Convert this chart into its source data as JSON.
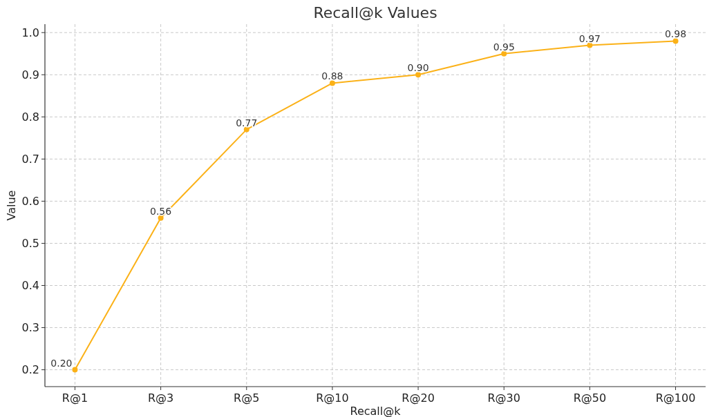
{
  "chart_data": {
    "type": "line",
    "title": "Recall@k Values",
    "xlabel": "Recall@k",
    "ylabel": "Value",
    "categories": [
      "R@1",
      "R@3",
      "R@5",
      "R@10",
      "R@20",
      "R@30",
      "R@50",
      "R@100"
    ],
    "series": [
      {
        "color": "#fbb117",
        "values": [
          0.2,
          0.56,
          0.77,
          0.88,
          0.9,
          0.95,
          0.97,
          0.98
        ],
        "value_labels": [
          "0.20",
          "0.56",
          "0.77",
          "0.88",
          "0.90",
          "0.95",
          "0.97",
          "0.98"
        ]
      }
    ],
    "ylim": [
      0.16,
      1.02
    ],
    "yticks": [
      {
        "value": 0.2,
        "label": "0.2"
      },
      {
        "value": 0.3,
        "label": "0.3"
      },
      {
        "value": 0.4,
        "label": "0.4"
      },
      {
        "value": 0.5,
        "label": "0.5"
      },
      {
        "value": 0.6,
        "label": "0.6"
      },
      {
        "value": 0.7,
        "label": "0.7"
      },
      {
        "value": 0.8,
        "label": "0.8"
      },
      {
        "value": 0.9,
        "label": "0.9"
      },
      {
        "value": 1.0,
        "label": "1.0"
      }
    ],
    "grid": true,
    "marker": "circle",
    "line_style": "solid"
  }
}
